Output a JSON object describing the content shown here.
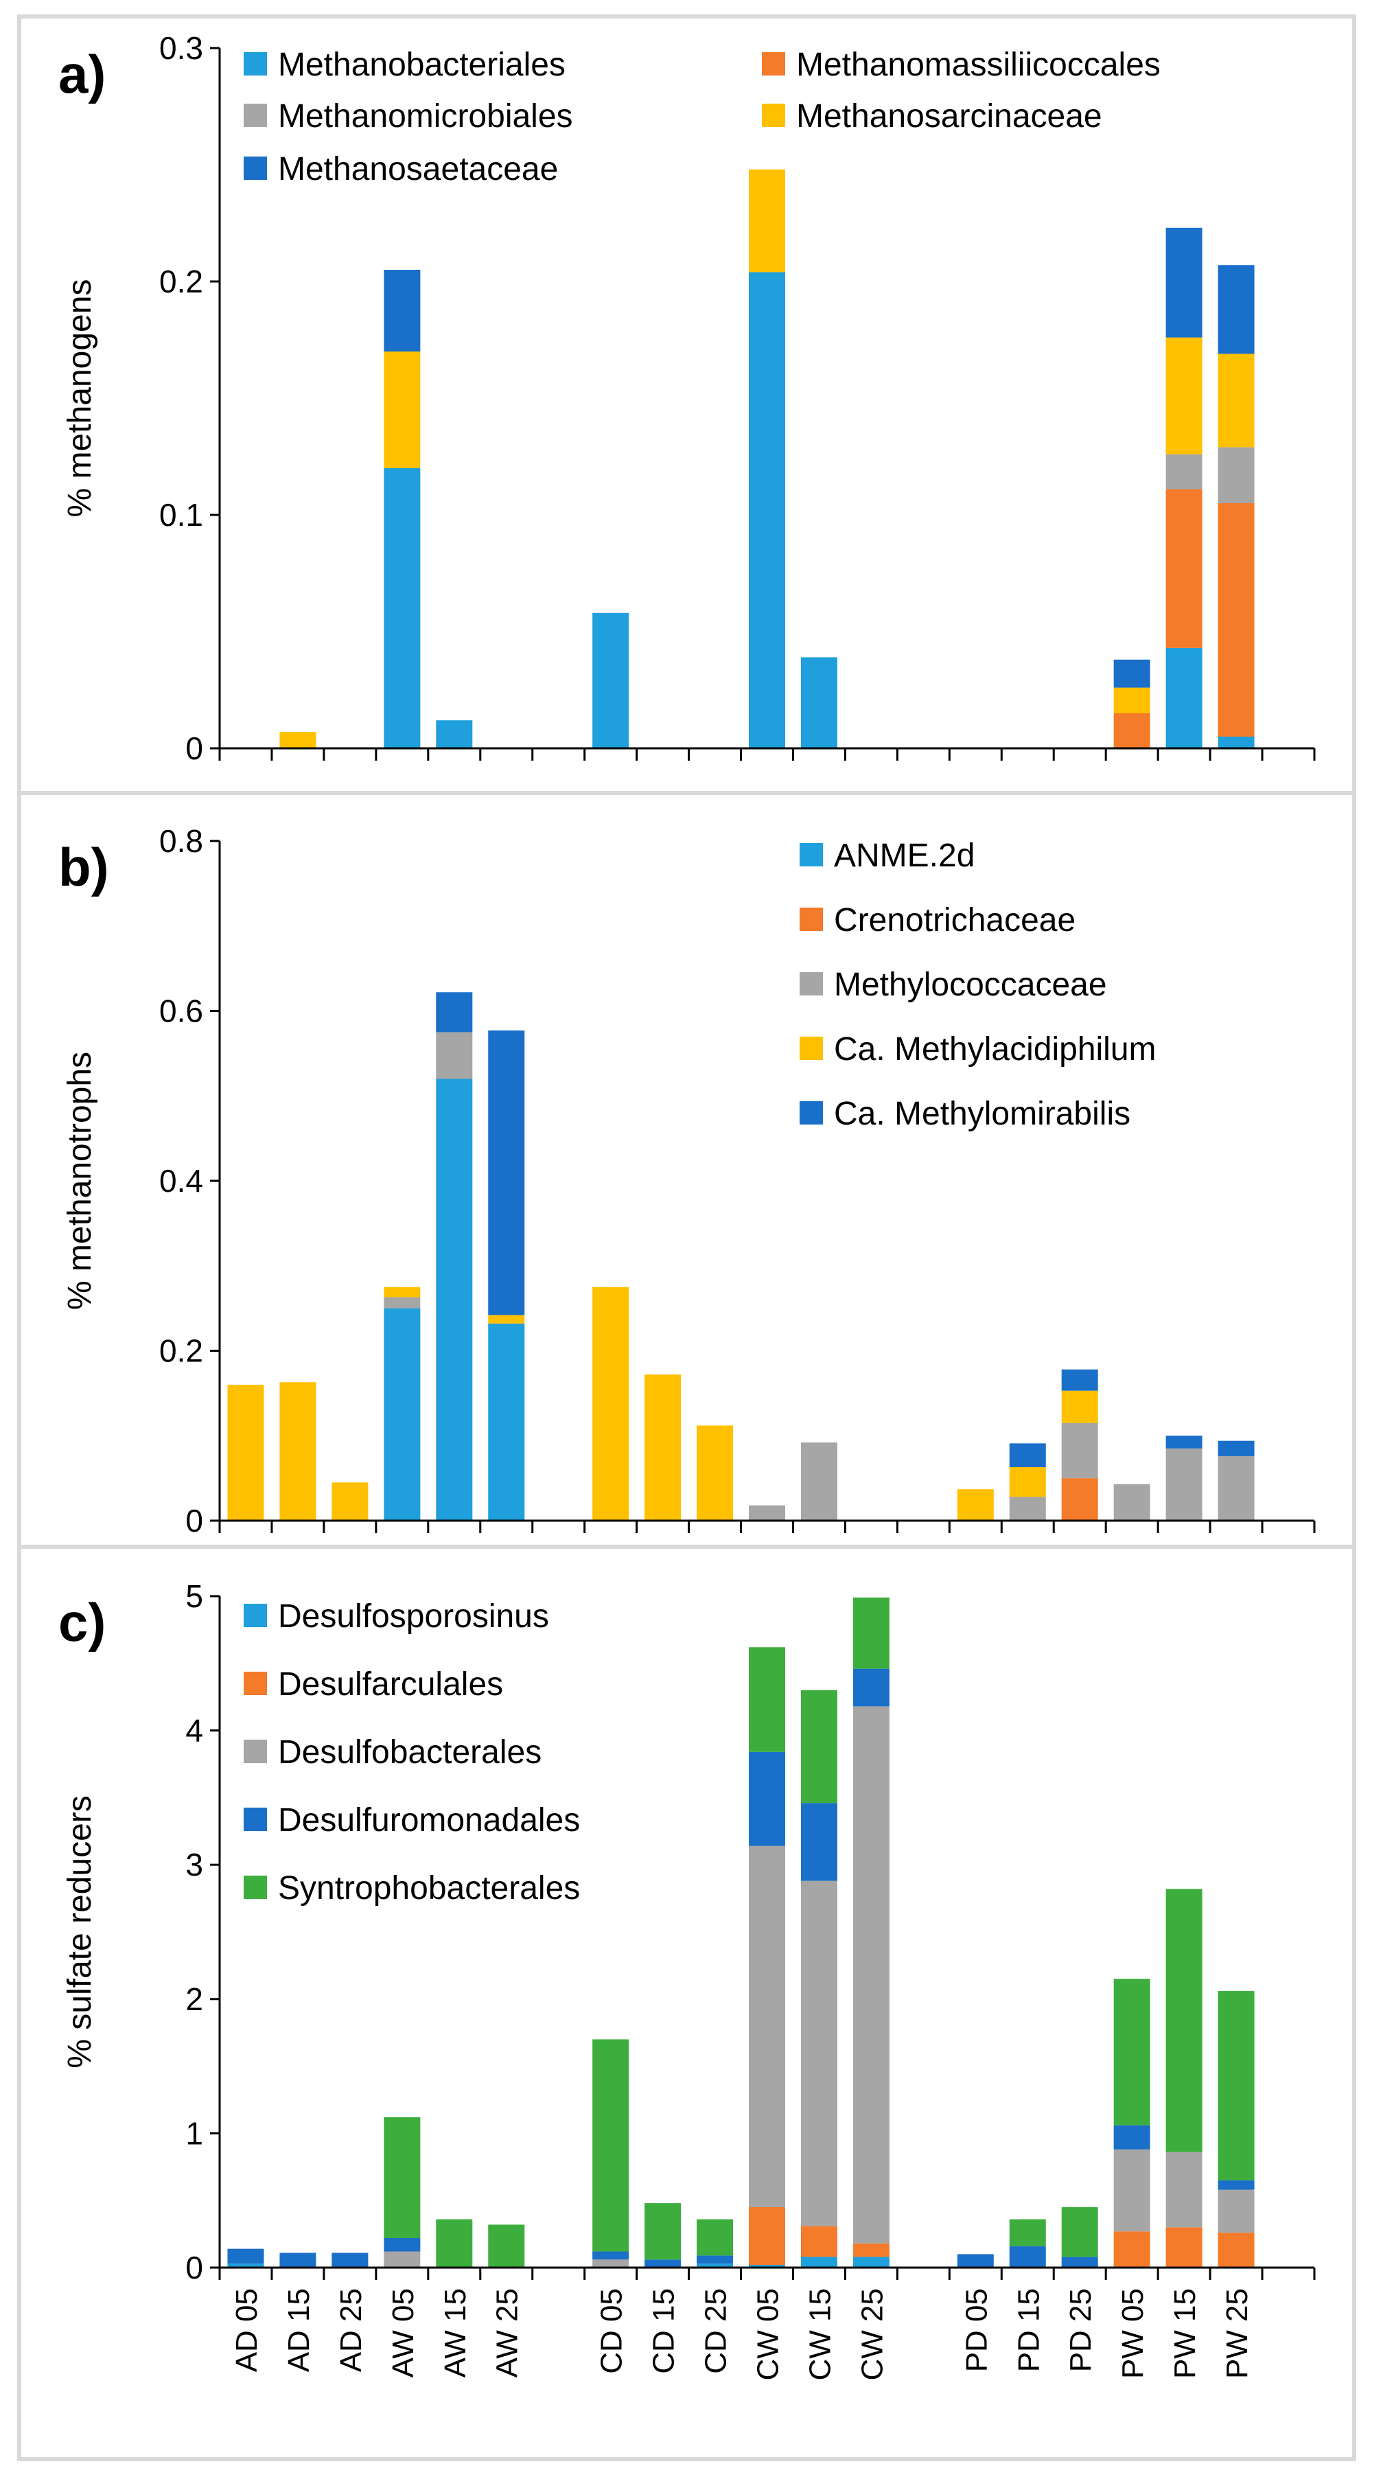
{
  "categories": [
    "AD 05",
    "AD 15",
    "AD 25",
    "AW 05",
    "AW 15",
    "AW 25",
    "CD 05",
    "CD 15",
    "CD 25",
    "CW 05",
    "CW 15",
    "CW 25",
    "PD 05",
    "PD 15",
    "PD 25",
    "PW 05",
    "PW 15",
    "PW 25"
  ],
  "chart_data": [
    {
      "type": "bar",
      "stacked": true,
      "panel_label": "a)",
      "ylabel": "% methanogens",
      "ylim": [
        0,
        0.3
      ],
      "yticks": [
        "0",
        "0.1",
        "0.2",
        "0.3"
      ],
      "legend_placement": "top",
      "series": [
        {
          "name": "Methanobacteriales",
          "color": "#1f9fdb",
          "values": [
            0,
            0,
            0,
            0.12,
            0.012,
            0,
            0.058,
            0,
            0,
            0.204,
            0.039,
            0,
            0,
            0,
            0,
            0,
            0.043,
            0.005
          ]
        },
        {
          "name": "Methanomassiliicoccales",
          "color": "#f47b2a",
          "values": [
            0,
            0,
            0,
            0,
            0,
            0,
            0,
            0,
            0,
            0,
            0,
            0,
            0,
            0,
            0,
            0.015,
            0.068,
            0.1
          ]
        },
        {
          "name": "Methanomicrobiales",
          "color": "#a6a6a6",
          "values": [
            0,
            0,
            0,
            0,
            0,
            0,
            0,
            0,
            0,
            0,
            0,
            0,
            0,
            0,
            0,
            0,
            0.015,
            0.024
          ]
        },
        {
          "name": "Methanosarcinaceae",
          "color": "#ffc000",
          "values": [
            0,
            0.007,
            0,
            0.05,
            0,
            0,
            0,
            0,
            0,
            0.044,
            0,
            0,
            0,
            0,
            0,
            0.011,
            0.05,
            0.04
          ]
        },
        {
          "name": "Methanosaetaceae",
          "color": "#1a6fc8",
          "values": [
            0,
            0,
            0,
            0.035,
            0,
            0,
            0,
            0,
            0,
            0,
            0,
            0,
            0,
            0,
            0,
            0.012,
            0.047,
            0.038
          ]
        }
      ]
    },
    {
      "type": "bar",
      "stacked": true,
      "panel_label": "b)",
      "ylabel": "% methanotrophs",
      "ylim": [
        0,
        0.8
      ],
      "yticks": [
        "0",
        "0.2",
        "0.4",
        "0.6",
        "0.8"
      ],
      "legend_placement": "top-right",
      "series": [
        {
          "name": "ANME.2d",
          "color": "#1f9fdb",
          "values": [
            0,
            0,
            0,
            0.25,
            0.52,
            0.232,
            0,
            0,
            0,
            0,
            0,
            0,
            0,
            0,
            0,
            0,
            0,
            0
          ]
        },
        {
          "name": "Crenotrichaceae",
          "color": "#f47b2a",
          "values": [
            0,
            0,
            0,
            0,
            0,
            0,
            0,
            0,
            0,
            0,
            0,
            0,
            0,
            0,
            0.05,
            0,
            0,
            0
          ]
        },
        {
          "name": "Methylococcaceae",
          "color": "#a6a6a6",
          "values": [
            0,
            0,
            0,
            0.013,
            0.055,
            0,
            0,
            0,
            0,
            0.018,
            0.092,
            0,
            0,
            0.028,
            0.065,
            0.043,
            0.085,
            0.076
          ]
        },
        {
          "name": "Ca. Methylacidiphilum",
          "color": "#ffc000",
          "values": [
            0.16,
            0.163,
            0.045,
            0.012,
            0,
            0.01,
            0.275,
            0.172,
            0.112,
            0,
            0,
            0,
            0.037,
            0.035,
            0.038,
            0,
            0,
            0
          ]
        },
        {
          "name": "Ca. Methylomirabilis",
          "color": "#1a6fc8",
          "values": [
            0,
            0,
            0,
            0,
            0.047,
            0.335,
            0,
            0,
            0,
            0,
            0,
            0,
            0,
            0.028,
            0.025,
            0,
            0.015,
            0.018
          ]
        }
      ]
    },
    {
      "type": "bar",
      "stacked": true,
      "panel_label": "c)",
      "ylabel": "% sulfate reducers",
      "ylim": [
        0,
        5
      ],
      "yticks": [
        "0",
        "1",
        "2",
        "3",
        "4",
        "5"
      ],
      "legend_placement": "top-left",
      "series": [
        {
          "name": "Desulfosporosinus",
          "color": "#1f9fdb",
          "values": [
            0.03,
            0,
            0,
            0,
            0,
            0,
            0,
            0,
            0.03,
            0.02,
            0.08,
            0.08,
            0,
            0,
            0,
            0,
            0,
            0
          ]
        },
        {
          "name": "Desulfarculales",
          "color": "#f47b2a",
          "values": [
            0,
            0,
            0,
            0,
            0,
            0,
            0,
            0,
            0,
            0.43,
            0.23,
            0.1,
            0,
            0,
            0,
            0.27,
            0.3,
            0.26
          ]
        },
        {
          "name": "Desulfobacterales",
          "color": "#a6a6a6",
          "values": [
            0,
            0,
            0,
            0.12,
            0,
            0,
            0.06,
            0,
            0,
            2.69,
            2.57,
            4.0,
            0,
            0,
            0,
            0.61,
            0.56,
            0.32
          ]
        },
        {
          "name": "Desulfuromonadales",
          "color": "#1a6fc8",
          "values": [
            0.11,
            0.11,
            0.11,
            0.1,
            0,
            0,
            0.06,
            0.06,
            0.06,
            0.7,
            0.58,
            0.28,
            0.1,
            0.16,
            0.08,
            0.18,
            0,
            0.07
          ]
        },
        {
          "name": "Syntrophobacterales",
          "color": "#3dae3d",
          "values": [
            0,
            0,
            0,
            0.9,
            0.36,
            0.32,
            1.58,
            0.42,
            0.27,
            0.78,
            0.84,
            0.53,
            0,
            0.2,
            0.37,
            1.09,
            1.96,
            1.41
          ]
        }
      ]
    }
  ]
}
